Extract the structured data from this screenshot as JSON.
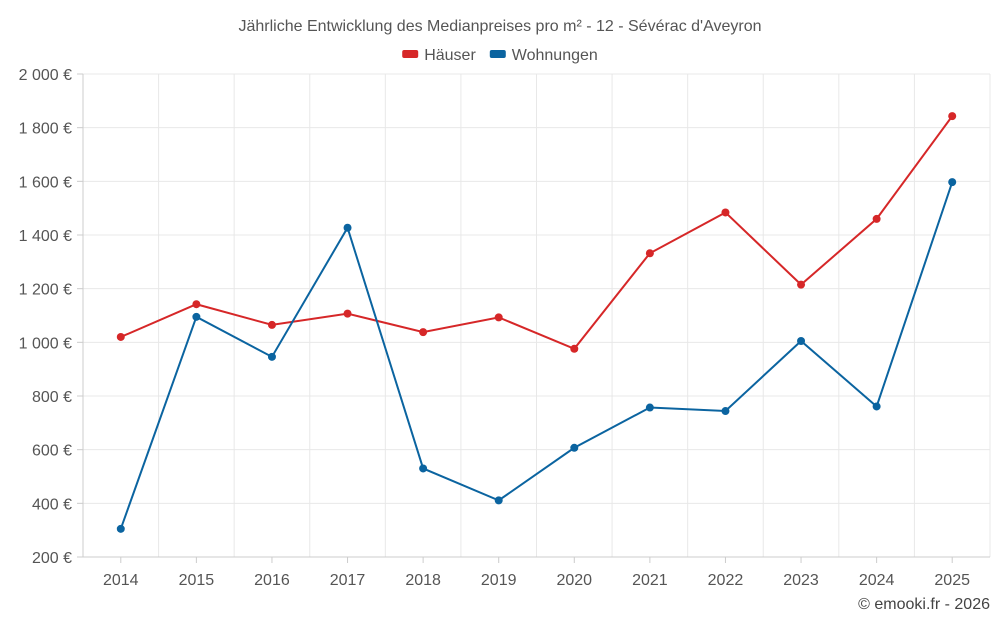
{
  "chart_data": {
    "type": "line",
    "title": "Jährliche Entwicklung des Medianpreises pro m² - 12 - Sévérac d'Aveyron",
    "xlabel": "",
    "ylabel": "",
    "categories": [
      "2014",
      "2015",
      "2016",
      "2017",
      "2018",
      "2019",
      "2020",
      "2021",
      "2022",
      "2023",
      "2024",
      "2025"
    ],
    "ylim": [
      200,
      2000
    ],
    "yticks": [
      200,
      400,
      600,
      800,
      1000,
      1200,
      1400,
      1600,
      1800,
      2000
    ],
    "ytick_labels": [
      "200 €",
      "400 €",
      "600 €",
      "800 €",
      "1 000 €",
      "1 200 €",
      "1 400 €",
      "1 600 €",
      "1 800 €",
      "2 000 €"
    ],
    "grid": true,
    "legend_position": "top-center",
    "series": [
      {
        "name": "Häuser",
        "color": "#d62728",
        "values": [
          1020,
          1142,
          1065,
          1107,
          1038,
          1093,
          976,
          1332,
          1484,
          1215,
          1460,
          1843
        ]
      },
      {
        "name": "Wohnungen",
        "color": "#0b64a0",
        "values": [
          305,
          1095,
          946,
          1427,
          530,
          411,
          607,
          757,
          744,
          1005,
          761,
          1597
        ]
      }
    ]
  },
  "credit": "© emooki.fr - 2026"
}
